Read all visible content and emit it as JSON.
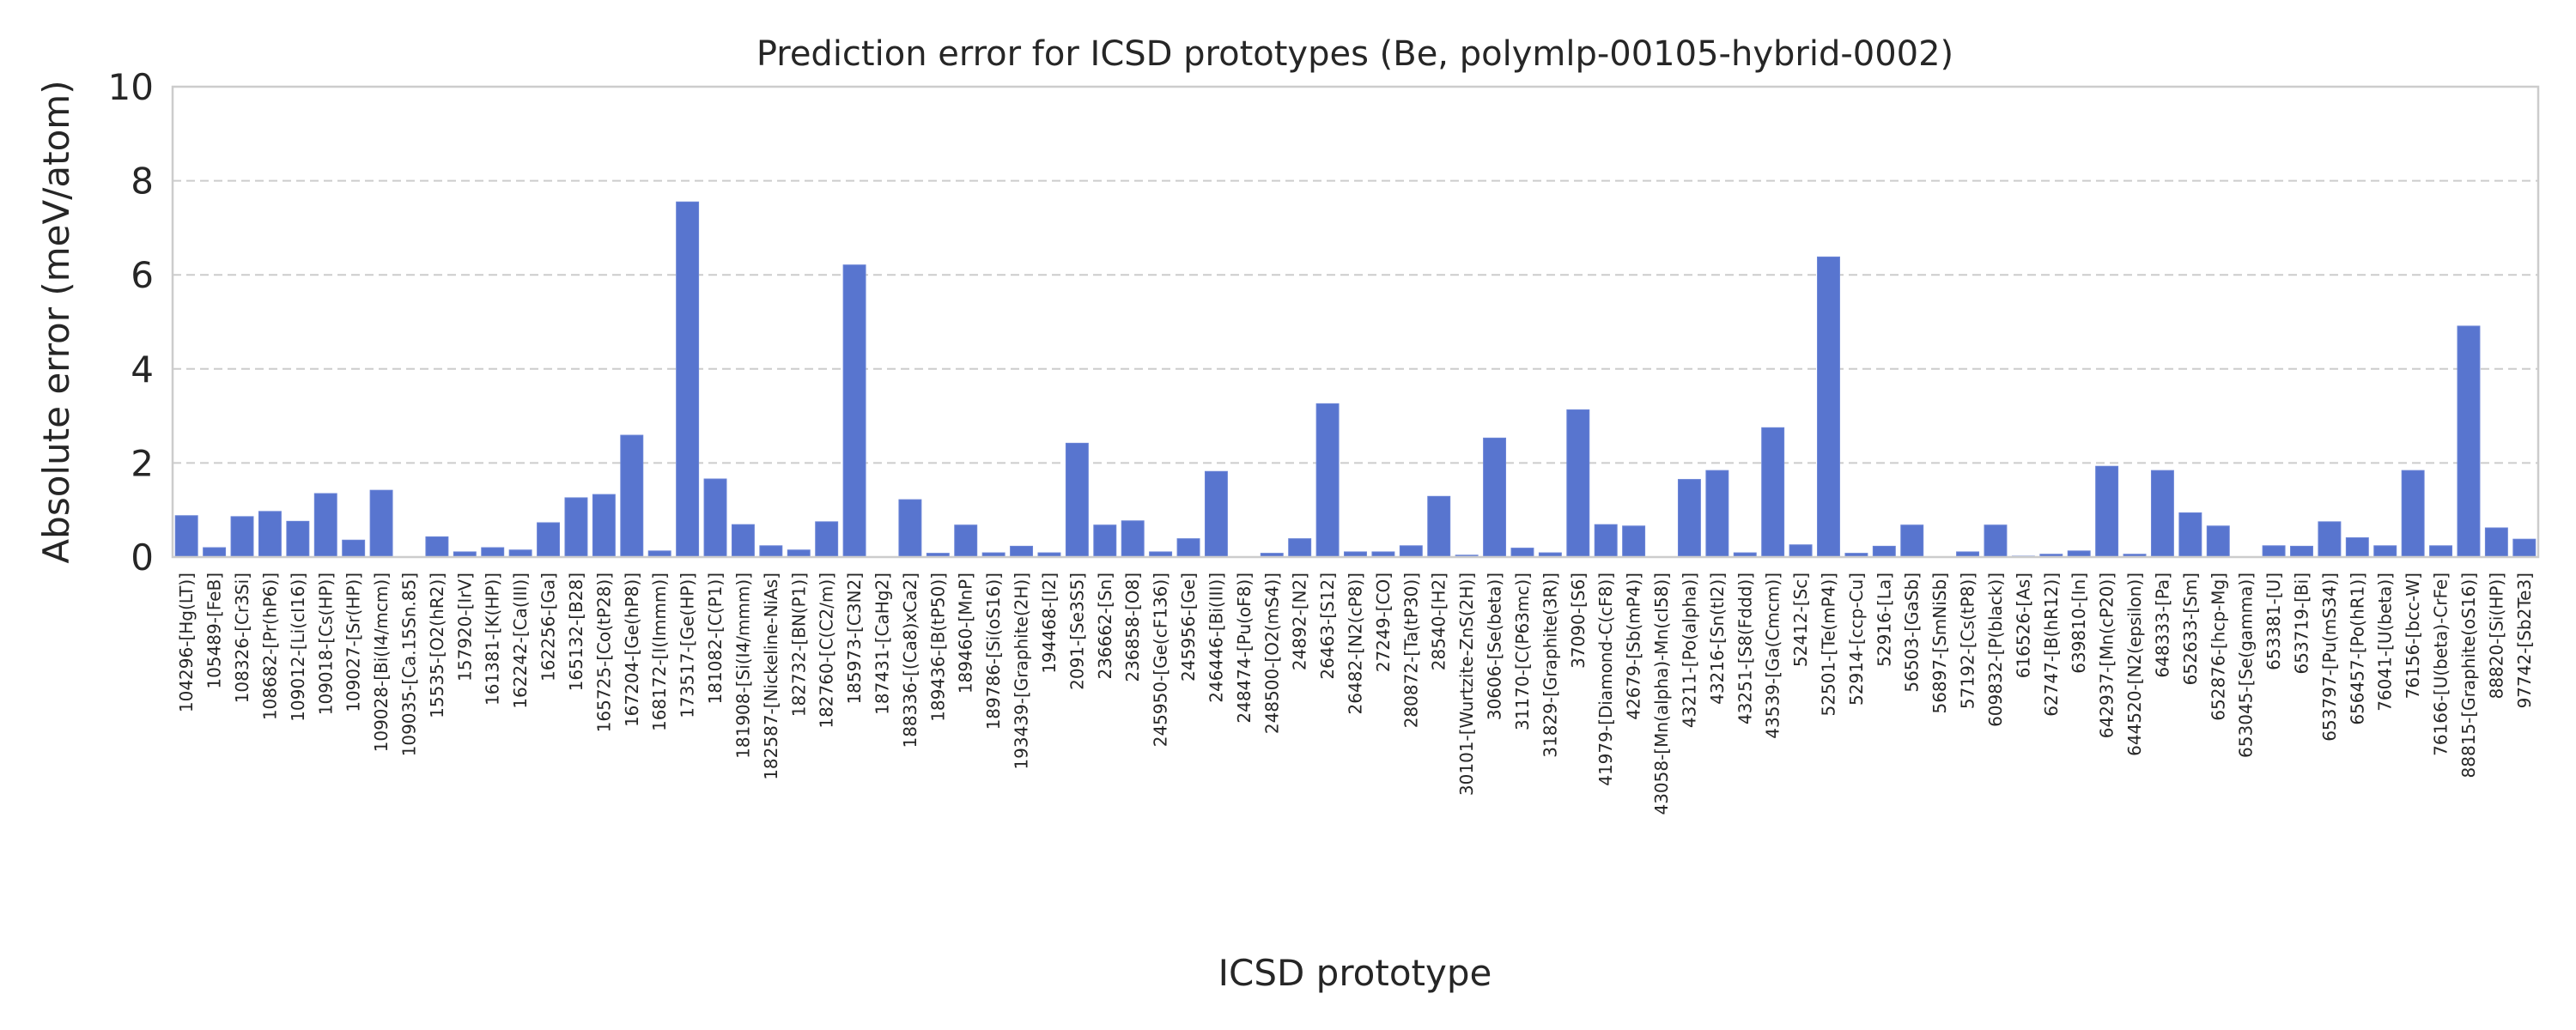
{
  "chart_data": {
    "type": "bar",
    "title": "Prediction error for ICSD prototypes (Be, polymlp-00105-hybrid-0002)",
    "xlabel": "ICSD prototype",
    "ylabel": "Absolute error (meV/atom)",
    "ylim": [
      0,
      10
    ],
    "yticks": [
      "0",
      "2",
      "4",
      "6",
      "8",
      "10"
    ],
    "grid": "horizontal dashed",
    "bar_color": "#5875cf",
    "categories": [
      "104296-[Hg(LT)]",
      "105489-[FeB]",
      "108326-[Cr3Si]",
      "108682-[Pr(hP6)]",
      "109012-[Li(cI16)]",
      "109018-[Cs(HP)]",
      "109027-[Sr(HP)]",
      "109028-[Bi(I4/mcm)]",
      "109035-[Ca.15Sn.85]",
      "15535-[O2(hR2)]",
      "157920-[IrV]",
      "161381-[K(HP)]",
      "162242-[Ca(III)]",
      "162256-[Ga]",
      "165132-[B28]",
      "165725-[Co(tP28)]",
      "167204-[Ge(hP8)]",
      "168172-[I(Immm)]",
      "173517-[Ge(HP)]",
      "181082-[C(P1)]",
      "181908-[Si(I4/mmm)]",
      "182587-[Nickeline-NiAs]",
      "182732-[BN(P1)]",
      "182760-[C(C2/m)]",
      "185973-[C3N2]",
      "187431-[CaHg2]",
      "188336-[(Ca8)xCa2]",
      "189436-[B(tP50)]",
      "189460-[MnP]",
      "189786-[Si(oS16)]",
      "193439-[Graphite(2H)]",
      "194468-[I2]",
      "2091-[Se3S5]",
      "236662-[Sn]",
      "236858-[O8]",
      "245950-[Ge(cF136)]",
      "245956-[Ge]",
      "246446-[Bi(III)]",
      "248474-[Pu(oF8)]",
      "248500-[O2(mS4)]",
      "24892-[N2]",
      "26463-[S12]",
      "26482-[N2(cP8)]",
      "27249-[CO]",
      "280872-[Ta(tP30)]",
      "28540-[H2]",
      "30101-[Wurtzite-ZnS(2H)]",
      "30606-[Se(beta)]",
      "31170-[C(P63mc)]",
      "31829-[Graphite(3R)]",
      "37090-[S6]",
      "41979-[Diamond-C(cF8)]",
      "42679-[Sb(mP4)]",
      "43058-[Mn(alpha)-Mn(cI58)]",
      "43211-[Po(alpha)]",
      "43216-[Sn(tI2)]",
      "43251-[S8(Fddd)]",
      "43539-[Ga(Cmcm)]",
      "52412-[Sc]",
      "52501-[Te(mP4)]",
      "52914-[ccp-Cu]",
      "52916-[La]",
      "56503-[GaSb]",
      "56897-[SmNiSb]",
      "57192-[Cs(tP8)]",
      "609832-[P(black)]",
      "616526-[As]",
      "62747-[B(hR12)]",
      "639810-[In]",
      "642937-[Mn(cP20)]",
      "644520-[N2(epsilon)]",
      "648333-[Pa]",
      "652633-[Sm]",
      "652876-[hcp-Mg]",
      "653045-[Se(gamma)]",
      "653381-[U]",
      "653719-[Bi]",
      "653797-[Pu(mS34)]",
      "656457-[Po(hR1)]",
      "76041-[U(beta)]",
      "76156-[bcc-W]",
      "76166-[U(beta)-CrFe]",
      "88815-[Graphite(oS16)]",
      "88820-[Si(HP)]",
      "97742-[Sb2Te3]"
    ],
    "values": [
      0.88,
      0.2,
      0.86,
      0.97,
      0.76,
      1.35,
      0.36,
      1.42,
      0.0,
      0.43,
      0.11,
      0.2,
      0.15,
      0.73,
      1.26,
      1.33,
      2.59,
      0.13,
      7.55,
      1.66,
      0.69,
      0.24,
      0.15,
      0.75,
      6.21,
      0.0,
      1.22,
      0.08,
      0.68,
      0.09,
      0.23,
      0.09,
      2.42,
      0.68,
      0.77,
      0.11,
      0.39,
      1.82,
      0.0,
      0.08,
      0.39,
      3.26,
      0.11,
      0.11,
      0.24,
      1.29,
      0.04,
      2.53,
      0.19,
      0.09,
      3.13,
      0.69,
      0.66,
      0.0,
      1.65,
      1.84,
      0.09,
      2.75,
      0.26,
      6.38,
      0.08,
      0.23,
      0.68,
      0.0,
      0.11,
      0.68,
      0.02,
      0.06,
      0.13,
      1.93,
      0.06,
      1.84,
      0.94,
      0.66,
      0.0,
      0.24,
      0.23,
      0.75,
      0.41,
      0.24,
      1.84,
      0.24,
      4.91,
      0.62,
      0.38
    ]
  }
}
